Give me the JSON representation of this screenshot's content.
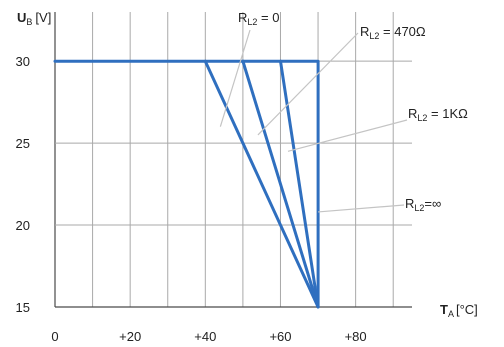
{
  "chart_data": {
    "type": "line",
    "ylabel": {
      "symbol": "U",
      "sub": "B",
      "unit": "[V]"
    },
    "xlabel": {
      "symbol": "T",
      "sub": "A",
      "unit": "[°C]"
    },
    "xlim": [
      0,
      95
    ],
    "ylim": [
      15,
      33
    ],
    "x_ticks": [
      0,
      20,
      40,
      60,
      80
    ],
    "x_tick_labels": [
      "0",
      "+20",
      "+40",
      "+60",
      "+80"
    ],
    "x_grid": [
      0,
      10,
      20,
      30,
      40,
      50,
      60,
      70,
      80,
      90
    ],
    "y_ticks": [
      15,
      20,
      25,
      30
    ],
    "y_tick_labels": [
      "15",
      "20",
      "25",
      "30"
    ],
    "line_color": "#2f6fbf",
    "series": [
      {
        "points": [
          [
            0,
            30
          ],
          [
            70,
            30
          ],
          [
            70,
            15
          ]
        ]
      },
      {
        "points": [
          [
            40,
            30
          ],
          [
            70,
            15
          ]
        ]
      },
      {
        "points": [
          [
            50,
            30
          ],
          [
            70,
            15
          ]
        ]
      },
      {
        "points": [
          [
            60,
            30
          ],
          [
            70,
            15
          ]
        ]
      }
    ],
    "annotations": [
      {
        "prefix": "R",
        "sub": "L2",
        "text": " = 0",
        "target": [
          44,
          26
        ]
      },
      {
        "prefix": "R",
        "sub": "L2",
        "text": " = 470Ω",
        "target": [
          54,
          25.5
        ]
      },
      {
        "prefix": "R",
        "sub": "L2",
        "text": " = 1KΩ",
        "target": [
          62,
          24.5
        ]
      },
      {
        "prefix": "R",
        "sub": "L2",
        "text": "=∞",
        "target": [
          70,
          20.8
        ]
      }
    ]
  }
}
